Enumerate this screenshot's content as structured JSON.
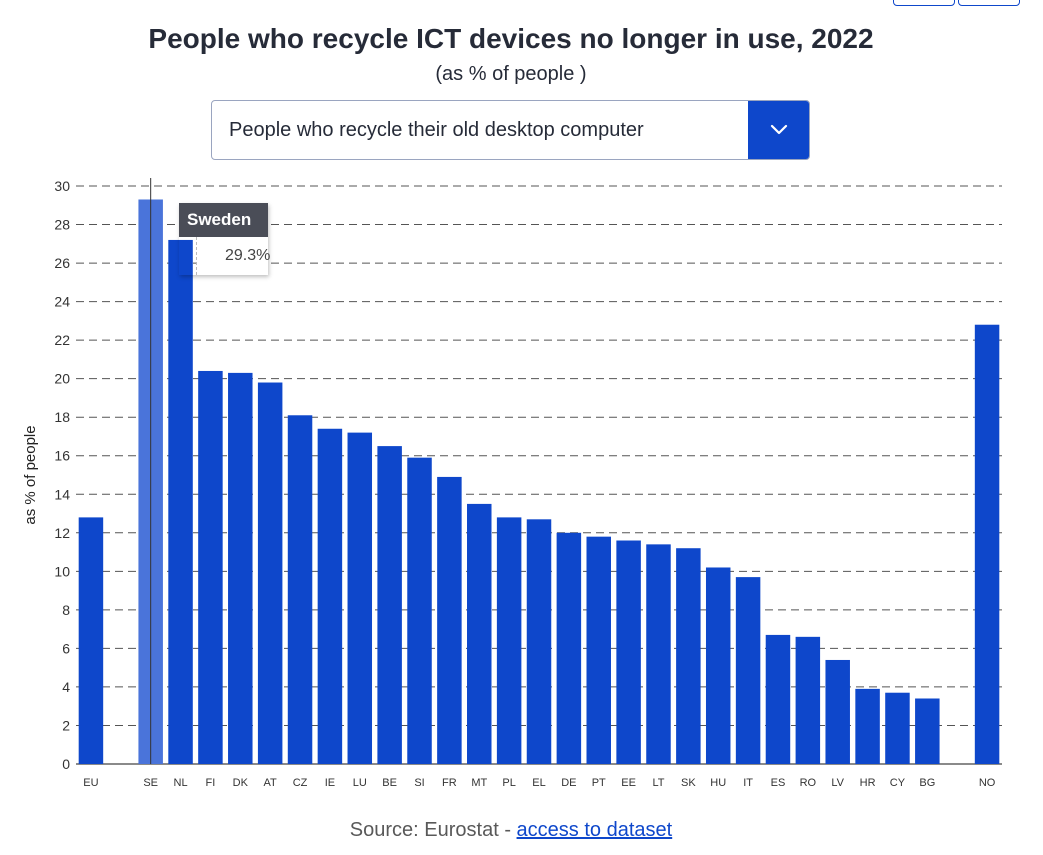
{
  "header": {
    "title": "People who recycle ICT devices no longer in use, 2022",
    "subtitle": "(as % of people )"
  },
  "dropdown": {
    "selected": "People who recycle their old desktop computer",
    "icon": "chevron-down-icon"
  },
  "tooltip": {
    "country": "Sweden",
    "value": "29.3%"
  },
  "footer": {
    "source_prefix": "Source: Eurostat - ",
    "link_text": "access to dataset"
  },
  "colors": {
    "bar": "#0e47cb",
    "bar_highlight": "#4a74da",
    "grid": "#555555"
  },
  "chart_data": {
    "type": "bar",
    "ylabel": "as % of people",
    "xlabel": "",
    "ylim": [
      0,
      30
    ],
    "yticks": [
      0,
      2,
      4,
      6,
      8,
      10,
      12,
      14,
      16,
      18,
      20,
      22,
      24,
      26,
      28,
      30
    ],
    "grid": "horizontal dashed",
    "highlighted": "SE",
    "categories": [
      "EU",
      "",
      "SE",
      "NL",
      "FI",
      "DK",
      "AT",
      "CZ",
      "IE",
      "LU",
      "BE",
      "SI",
      "FR",
      "MT",
      "PL",
      "EL",
      "DE",
      "PT",
      "EE",
      "LT",
      "SK",
      "HU",
      "IT",
      "ES",
      "RO",
      "LV",
      "HR",
      "CY",
      "BG",
      "",
      "NO"
    ],
    "values": [
      12.8,
      null,
      29.3,
      27.2,
      20.4,
      20.3,
      19.8,
      18.1,
      17.4,
      17.2,
      16.5,
      15.9,
      14.9,
      13.5,
      12.8,
      12.7,
      12.0,
      11.8,
      11.6,
      11.4,
      11.2,
      10.2,
      9.7,
      6.7,
      6.6,
      5.4,
      3.9,
      3.7,
      3.4,
      null,
      22.8
    ]
  }
}
